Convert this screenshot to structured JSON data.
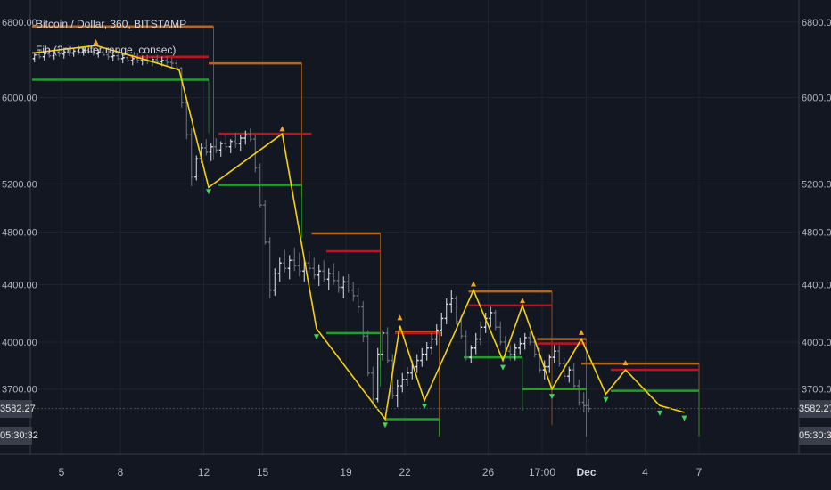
{
  "header": {
    "title": "Bitcoin / Dollar, 360, BITSTAMP",
    "subtitle": "Fib (3pt, outer range, consec)"
  },
  "price_axis": {
    "ticks": [
      "6800.00",
      "6000.00",
      "5200.00",
      "4800.00",
      "4400.00",
      "4000.00",
      "3700.00"
    ],
    "last_price": "3582.27",
    "countdown": "05:30:32"
  },
  "time_axis": {
    "labels": [
      "5",
      "8",
      "12",
      "15",
      "19",
      "22",
      "26",
      "17:00",
      "Dec",
      "4",
      "7"
    ]
  },
  "colors": {
    "background": "#131722",
    "candle_up": "#e0e3eb",
    "candle_down": "#6e7380",
    "zigzag": "#f5d20a",
    "upper_level": "#b5651d",
    "mid_level": "#c2121f",
    "lower_level": "#1e9f2a",
    "marker_high": "#f0a52a",
    "marker_low": "#3bd65a",
    "marker_minor": "#787b86"
  },
  "chart_data": {
    "type": "candlestick",
    "symbol": "Bitcoin / Dollar",
    "interval": "360",
    "exchange": "BITSTAMP",
    "y_scale": "log",
    "ylim": [
      3420,
      6950
    ],
    "x_index_range": [
      0,
      144
    ],
    "candles": [
      [
        6400,
        6470,
        6360,
        6440
      ],
      [
        6440,
        6500,
        6400,
        6420
      ],
      [
        6420,
        6470,
        6380,
        6450
      ],
      [
        6450,
        6510,
        6410,
        6430
      ],
      [
        6430,
        6480,
        6390,
        6460
      ],
      [
        6460,
        6520,
        6420,
        6450
      ],
      [
        6450,
        6500,
        6400,
        6470
      ],
      [
        6470,
        6530,
        6430,
        6460
      ],
      [
        6460,
        6510,
        6420,
        6480
      ],
      [
        6480,
        6540,
        6440,
        6470
      ],
      [
        6470,
        6520,
        6430,
        6490
      ],
      [
        6490,
        6545,
        6450,
        6475
      ],
      [
        6475,
        6520,
        6430,
        6450
      ],
      [
        6450,
        6500,
        6410,
        6470
      ],
      [
        6470,
        6520,
        6430,
        6440
      ],
      [
        6440,
        6490,
        6390,
        6420
      ],
      [
        6420,
        6470,
        6370,
        6430
      ],
      [
        6430,
        6480,
        6380,
        6400
      ],
      [
        6400,
        6450,
        6350,
        6410
      ],
      [
        6410,
        6460,
        6360,
        6380
      ],
      [
        6380,
        6440,
        6330,
        6400
      ],
      [
        6400,
        6460,
        6350,
        6380
      ],
      [
        6380,
        6430,
        6330,
        6395
      ],
      [
        6395,
        6440,
        6340,
        6370
      ],
      [
        6370,
        6420,
        6320,
        6390
      ],
      [
        6390,
        6440,
        6340,
        6370
      ],
      [
        6370,
        6420,
        6320,
        6380
      ],
      [
        6380,
        6430,
        6330,
        6360
      ],
      [
        6360,
        6410,
        6310,
        6350
      ],
      [
        6350,
        6390,
        6290,
        6300
      ],
      [
        6300,
        6310,
        5900,
        5950
      ],
      [
        5950,
        6000,
        5600,
        5640
      ],
      [
        5640,
        5700,
        5180,
        5260
      ],
      [
        5260,
        5450,
        5230,
        5420
      ],
      [
        5420,
        5560,
        5380,
        5520
      ],
      [
        5520,
        5600,
        5450,
        5480
      ],
      [
        5480,
        5560,
        5400,
        5530
      ],
      [
        5530,
        5610,
        5470,
        5500
      ],
      [
        5500,
        5580,
        5440,
        5560
      ],
      [
        5560,
        5640,
        5500,
        5530
      ],
      [
        5530,
        5600,
        5470,
        5580
      ],
      [
        5580,
        5660,
        5520,
        5560
      ],
      [
        5560,
        5640,
        5490,
        5610
      ],
      [
        5610,
        5680,
        5550,
        5640
      ],
      [
        5640,
        5700,
        5580,
        5600
      ],
      [
        5600,
        5640,
        5300,
        5340
      ],
      [
        5340,
        5380,
        5000,
        5020
      ],
      [
        5020,
        5060,
        4700,
        4720
      ],
      [
        4720,
        4760,
        4300,
        4360
      ],
      [
        4360,
        4520,
        4320,
        4480
      ],
      [
        4480,
        4600,
        4420,
        4560
      ],
      [
        4560,
        4660,
        4490,
        4520
      ],
      [
        4520,
        4620,
        4440,
        4580
      ],
      [
        4580,
        4680,
        4500,
        4540
      ],
      [
        4540,
        4640,
        4460,
        4500
      ],
      [
        4500,
        4600,
        4420,
        4560
      ],
      [
        4560,
        4650,
        4490,
        4520
      ],
      [
        4520,
        4600,
        4440,
        4470
      ],
      [
        4470,
        4550,
        4390,
        4500
      ],
      [
        4500,
        4580,
        4420,
        4440
      ],
      [
        4440,
        4520,
        4360,
        4480
      ],
      [
        4480,
        4560,
        4400,
        4430
      ],
      [
        4430,
        4500,
        4340,
        4380
      ],
      [
        4380,
        4460,
        4300,
        4420
      ],
      [
        4420,
        4480,
        4340,
        4360
      ],
      [
        4360,
        4420,
        4280,
        4320
      ],
      [
        4320,
        4380,
        4200,
        4240
      ],
      [
        4240,
        4280,
        4000,
        4040
      ],
      [
        4040,
        4080,
        3780,
        3800
      ],
      [
        3800,
        3840,
        3600,
        3640
      ],
      [
        3640,
        3960,
        3620,
        3920
      ],
      [
        3920,
        4080,
        3880,
        4060
      ],
      [
        4060,
        4100,
        3860,
        3880
      ],
      [
        3880,
        3920,
        3640,
        3660
      ],
      [
        3660,
        3760,
        3590,
        3720
      ],
      [
        3720,
        3800,
        3680,
        3760
      ],
      [
        3760,
        3840,
        3720,
        3800
      ],
      [
        3800,
        3880,
        3760,
        3840
      ],
      [
        3840,
        3920,
        3800,
        3880
      ],
      [
        3880,
        3960,
        3840,
        3920
      ],
      [
        3920,
        4000,
        3880,
        3960
      ],
      [
        3960,
        4060,
        3920,
        4020
      ],
      [
        4020,
        4120,
        3980,
        4080
      ],
      [
        4080,
        4200,
        4040,
        4160
      ],
      [
        4160,
        4300,
        4120,
        4260
      ],
      [
        4260,
        4360,
        4200,
        4300
      ],
      [
        4300,
        4320,
        4120,
        4140
      ],
      [
        4140,
        4180,
        4020,
        4040
      ],
      [
        4040,
        4080,
        3880,
        3900
      ],
      [
        3900,
        3980,
        3860,
        3960
      ],
      [
        3960,
        4060,
        3920,
        4020
      ],
      [
        4020,
        4140,
        3980,
        4100
      ],
      [
        4100,
        4200,
        4060,
        4160
      ],
      [
        4160,
        4240,
        4100,
        4200
      ],
      [
        4200,
        4220,
        4080,
        4100
      ],
      [
        4100,
        4140,
        3980,
        4000
      ],
      [
        4000,
        4040,
        3920,
        3940
      ],
      [
        3940,
        3980,
        3880,
        3920
      ],
      [
        3920,
        3990,
        3880,
        3960
      ],
      [
        3960,
        4030,
        3920,
        3990
      ],
      [
        3990,
        4060,
        3950,
        4030
      ],
      [
        4030,
        4070,
        3980,
        4000
      ],
      [
        4000,
        4040,
        3900,
        3920
      ],
      [
        3920,
        3960,
        3800,
        3820
      ],
      [
        3820,
        3880,
        3760,
        3840
      ],
      [
        3840,
        3920,
        3800,
        3900
      ],
      [
        3900,
        3980,
        3860,
        3940
      ],
      [
        3940,
        3980,
        3840,
        3860
      ],
      [
        3860,
        3900,
        3760,
        3780
      ],
      [
        3780,
        3840,
        3740,
        3820
      ],
      [
        3820,
        3860,
        3700,
        3720
      ],
      [
        3720,
        3760,
        3600,
        3620
      ],
      [
        3620,
        3680,
        3560,
        3600
      ],
      [
        3600,
        3640,
        3560,
        3582.27
      ]
    ],
    "zigzag": [
      [
        0,
        6460
      ],
      [
        13,
        6540
      ],
      [
        25,
        6360
      ],
      [
        30,
        6280
      ],
      [
        36,
        5170
      ],
      [
        51,
        5650
      ],
      [
        58,
        4090
      ],
      [
        72,
        3520
      ],
      [
        75,
        4110
      ],
      [
        80,
        3630
      ],
      [
        86,
        4050
      ],
      [
        90,
        4360
      ],
      [
        96,
        3880
      ],
      [
        100,
        4250
      ],
      [
        106,
        3700
      ],
      [
        112,
        4020
      ],
      [
        117,
        3670
      ],
      [
        121,
        3820
      ],
      [
        128,
        3600
      ],
      [
        133,
        3560
      ]
    ],
    "fib_levels": [
      {
        "kind": "upper",
        "price": 6750,
        "x": [
          0,
          37
        ]
      },
      {
        "kind": "mid",
        "price": 6420,
        "x": [
          20,
          36
        ]
      },
      {
        "kind": "lower",
        "price": 6180,
        "x": [
          0,
          36
        ]
      },
      {
        "kind": "upper",
        "price": 6350,
        "x": [
          36,
          55
        ]
      },
      {
        "kind": "mid",
        "price": 5650,
        "x": [
          38,
          57
        ]
      },
      {
        "kind": "lower",
        "price": 5190,
        "x": [
          38,
          55
        ]
      },
      {
        "kind": "upper",
        "price": 4790,
        "x": [
          57,
          71
        ]
      },
      {
        "kind": "mid",
        "price": 4650,
        "x": [
          60,
          71
        ]
      },
      {
        "kind": "lower",
        "price": 4060,
        "x": [
          60,
          71
        ]
      },
      {
        "kind": "upper",
        "price": 4070,
        "x": [
          74,
          83
        ]
      },
      {
        "kind": "mid",
        "price": 4060,
        "x": [
          74,
          83
        ]
      },
      {
        "kind": "lower",
        "price": 3520,
        "x": [
          72,
          83
        ]
      },
      {
        "kind": "upper",
        "price": 4350,
        "x": [
          89,
          106
        ]
      },
      {
        "kind": "mid",
        "price": 4250,
        "x": [
          89,
          106
        ]
      },
      {
        "kind": "lower",
        "price": 3900,
        "x": [
          88,
          100
        ]
      },
      {
        "kind": "upper",
        "price": 4020,
        "x": [
          103,
          113
        ]
      },
      {
        "kind": "mid",
        "price": 3990,
        "x": [
          103,
          113
        ]
      },
      {
        "kind": "lower",
        "price": 3700,
        "x": [
          100,
          113
        ]
      },
      {
        "kind": "upper",
        "price": 3860,
        "x": [
          112,
          136
        ]
      },
      {
        "kind": "mid",
        "price": 3820,
        "x": [
          118,
          136
        ]
      },
      {
        "kind": "lower",
        "price": 3690,
        "x": [
          118,
          136
        ]
      }
    ],
    "pivot_markers_high": [
      [
        13,
        6570
      ],
      [
        51,
        5690
      ],
      [
        75,
        4160
      ],
      [
        90,
        4400
      ],
      [
        100,
        4280
      ],
      [
        112,
        4060
      ],
      [
        121,
        3860
      ]
    ],
    "pivot_markers_low": [
      [
        36,
        5140
      ],
      [
        58,
        4040
      ],
      [
        72,
        3490
      ],
      [
        80,
        3600
      ],
      [
        96,
        3840
      ],
      [
        106,
        3660
      ],
      [
        117,
        3640
      ],
      [
        128,
        3560
      ],
      [
        133,
        3530
      ]
    ],
    "y_ticks": [
      6800,
      6000,
      5200,
      4800,
      4400,
      4000,
      3700
    ],
    "time_tick_positions": [
      6,
      18,
      35,
      47,
      64,
      76,
      93,
      104,
      113,
      125,
      136
    ]
  }
}
